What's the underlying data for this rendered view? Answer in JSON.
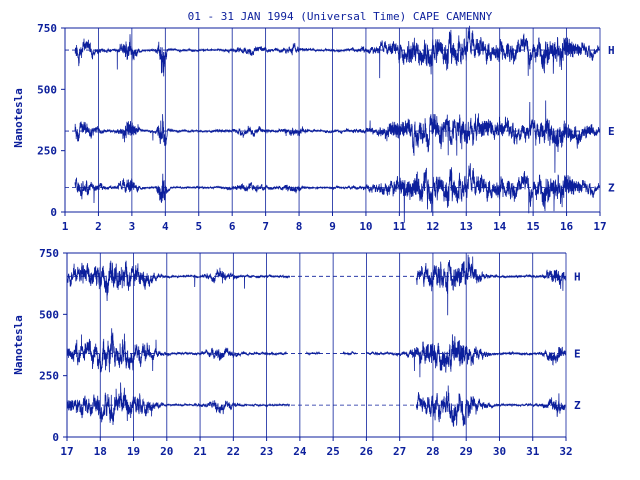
{
  "chart_data": {
    "type": "line",
    "title": "01 - 31 JAN 1994 (Universal Time) CAPE CAMENNY",
    "ylabel": "Nanotesla",
    "ylim": [
      0,
      750
    ],
    "yticks": [
      "0",
      "250",
      "500",
      "750"
    ],
    "grid": true,
    "colors": {
      "trace": "#0c1f9c",
      "text": "#0c1f9c",
      "grid": "#0c1f9c"
    },
    "panels": [
      {
        "x_ticks": [
          "1",
          "2",
          "3",
          "4",
          "5",
          "6",
          "7",
          "8",
          "9",
          "10",
          "11",
          "12",
          "13",
          "14",
          "15",
          "16",
          "17"
        ],
        "x_range": [
          1,
          17
        ],
        "series": [
          {
            "name": "H",
            "baseline": 660,
            "quiet": 3,
            "gaps": []
          },
          {
            "name": "E",
            "baseline": 330,
            "quiet": 4,
            "gaps": []
          },
          {
            "name": "Z",
            "baseline": 100,
            "quiet": 3,
            "gaps": []
          }
        ],
        "disturbances": [
          {
            "day": 1.4,
            "width": 0.6,
            "amp": 60
          },
          {
            "day": 2.9,
            "width": 0.25,
            "amp": 70
          },
          {
            "day": 3.9,
            "width": 0.12,
            "amp": 150
          },
          {
            "day": 6.5,
            "width": 0.5,
            "amp": 25
          },
          {
            "day": 7.8,
            "width": 0.3,
            "amp": 30
          },
          {
            "day": 11.8,
            "width": 1.3,
            "amp": 110
          },
          {
            "day": 13.3,
            "width": 0.8,
            "amp": 70
          },
          {
            "day": 14.5,
            "width": 0.6,
            "amp": 60
          },
          {
            "day": 15.6,
            "width": 0.6,
            "amp": 110
          },
          {
            "day": 16.5,
            "width": 0.5,
            "amp": 50
          }
        ]
      },
      {
        "x_ticks": [
          "17",
          "18",
          "19",
          "20",
          "21",
          "22",
          "23",
          "24",
          "25",
          "26",
          "27",
          "28",
          "29",
          "30",
          "31",
          "32"
        ],
        "x_range": [
          17,
          32
        ],
        "series": [
          {
            "name": "H",
            "baseline": 655,
            "quiet": 3,
            "gaps": [
              [
                23.7,
                27.5
              ]
            ]
          },
          {
            "name": "E",
            "baseline": 340,
            "quiet": 4,
            "gaps": [
              [
                23.6,
                24.2
              ],
              [
                24.6,
                25.3
              ],
              [
                25.7,
                26.0
              ]
            ]
          },
          {
            "name": "Z",
            "baseline": 130,
            "quiet": 3,
            "gaps": [
              [
                23.7,
                27.5
              ]
            ]
          }
        ],
        "disturbances": [
          {
            "day": 17.6,
            "width": 0.9,
            "amp": 70
          },
          {
            "day": 18.5,
            "width": 0.5,
            "amp": 90
          },
          {
            "day": 19.3,
            "width": 0.4,
            "amp": 60
          },
          {
            "day": 21.6,
            "width": 0.4,
            "amp": 40
          },
          {
            "day": 27.9,
            "width": 0.5,
            "amp": 80
          },
          {
            "day": 28.8,
            "width": 0.6,
            "amp": 100
          },
          {
            "day": 31.7,
            "width": 0.3,
            "amp": 60
          }
        ]
      }
    ]
  }
}
